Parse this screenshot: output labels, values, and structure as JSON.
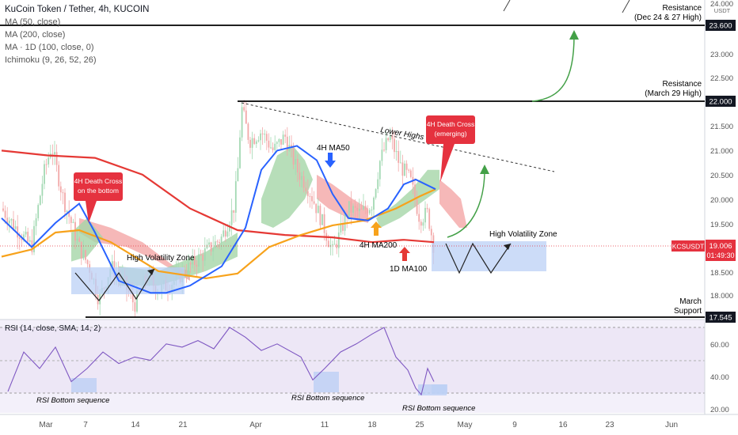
{
  "header": {
    "symbol_title": "KuCoin Token / Tether, 4h, KUCOIN",
    "indicators": [
      "MA (50, close)",
      "MA (200, close)",
      "MA · 1D (100, close, 0)",
      "Ichimoku (9, 26, 52, 26)"
    ]
  },
  "rsi_panel": {
    "label": "RSI (14, close, SMA, 14, 2)"
  },
  "price_axis": {
    "unit": "USDT",
    "ticks": [
      "24.000",
      "23.000",
      "22.500",
      "21.500",
      "21.000",
      "20.500",
      "20.000",
      "19.500",
      "18.500",
      "18.000"
    ],
    "highlighted": [
      {
        "value": "23.600",
        "style": "dark"
      },
      {
        "value": "22.000",
        "style": "dark"
      },
      {
        "value": "19.006",
        "style": "red",
        "extra": "01:49:30",
        "symbol": "KCSUSDT"
      },
      {
        "value": "17.545",
        "style": "dark"
      }
    ],
    "rsi_ticks": [
      "60.00",
      "40.00",
      "20.00"
    ]
  },
  "time_axis": {
    "ticks": [
      "Mar",
      "7",
      "14",
      "21",
      "Apr",
      "11",
      "18",
      "25",
      "May",
      "9",
      "16",
      "23",
      "Jun"
    ]
  },
  "annotations": {
    "resistance_top": [
      "Resistance",
      "(Dec 24 & 27 High)"
    ],
    "resistance_mid": [
      "Resistance",
      "(March 29 High)"
    ],
    "support": [
      "March",
      "Support"
    ],
    "lower_highs": "Lower Highs",
    "ma50": "4H MA50",
    "ma200": "4H MA200",
    "ma100_1d": "1D MA100",
    "high_vol_left": "High Volatility Zone",
    "high_vol_right": "High Volatility Zone",
    "death_cross_left": [
      "4H Death Cross",
      "on the bottom"
    ],
    "death_cross_right": [
      "4H Death Cross",
      "(emerging)"
    ],
    "rsi_bottom": [
      "RSI Bottom sequence",
      "RSI Bottom sequence",
      "RSI Bottom sequence"
    ]
  },
  "colors": {
    "ma50": "#2962ff",
    "ma200": "#f7a21b",
    "ma100_1d": "#e53935",
    "cloud_bull": "#a5d6a7",
    "cloud_bear": "#f4a6a6",
    "candle_up": "#a3d9b3",
    "candle_down": "#f2a8a8",
    "zone_fill": "#bbd0f5",
    "rsi_line": "#7e57c2",
    "rsi_band": "#ede7f6",
    "callout": "#e5323f",
    "projection": "#43a047"
  },
  "chart_data": {
    "type": "line",
    "title": "KuCoin Token / Tether, 4h, KUCOIN",
    "x": [
      "Mar",
      "7",
      "14",
      "21",
      "Apr",
      "11",
      "18",
      "25",
      "May",
      "9",
      "16",
      "23",
      "Jun"
    ],
    "ylim": [
      17.3,
      24.2
    ],
    "price_levels": {
      "resistance_dec": 23.6,
      "resistance_mar29": 22.0,
      "current": 19.006,
      "march_support": 17.545
    },
    "series": [
      {
        "name": "MA (50, close)",
        "points": [
          [
            2,
            19.6
          ],
          [
            40,
            19.0
          ],
          [
            70,
            19.5
          ],
          [
            100,
            19.9
          ],
          [
            120,
            19.3
          ],
          [
            150,
            18.3
          ],
          [
            190,
            18.05
          ],
          [
            210,
            18.05
          ],
          [
            240,
            18.2
          ],
          [
            280,
            18.6
          ],
          [
            310,
            19.4
          ],
          [
            330,
            20.6
          ],
          [
            350,
            21.0
          ],
          [
            375,
            21.1
          ],
          [
            400,
            20.8
          ],
          [
            420,
            20.1
          ],
          [
            440,
            19.6
          ],
          [
            465,
            19.55
          ],
          [
            490,
            19.8
          ],
          [
            510,
            20.3
          ],
          [
            525,
            20.4
          ],
          [
            550,
            20.2
          ]
        ]
      },
      {
        "name": "MA (200, close)",
        "points": [
          [
            2,
            18.8
          ],
          [
            40,
            18.95
          ],
          [
            70,
            19.3
          ],
          [
            100,
            19.35
          ],
          [
            140,
            19.1
          ],
          [
            200,
            18.5
          ],
          [
            260,
            18.35
          ],
          [
            300,
            18.45
          ],
          [
            340,
            19.0
          ],
          [
            380,
            19.25
          ],
          [
            420,
            19.45
          ],
          [
            460,
            19.55
          ],
          [
            500,
            19.8
          ],
          [
            530,
            20.05
          ],
          [
            550,
            20.2
          ]
        ]
      },
      {
        "name": "MA · 1D (100, close, 0)",
        "points": [
          [
            2,
            21.0
          ],
          [
            60,
            20.9
          ],
          [
            120,
            20.85
          ],
          [
            180,
            20.5
          ],
          [
            240,
            19.8
          ],
          [
            300,
            19.35
          ],
          [
            360,
            19.25
          ],
          [
            420,
            19.2
          ],
          [
            470,
            19.1
          ],
          [
            510,
            19.15
          ],
          [
            548,
            19.1
          ]
        ]
      },
      {
        "name": "RSI (14, close, SMA, 14, 2)",
        "ylim": [
          15,
          75
        ],
        "points": [
          [
            10,
            31
          ],
          [
            30,
            55
          ],
          [
            50,
            45
          ],
          [
            70,
            58
          ],
          [
            90,
            37
          ],
          [
            110,
            45
          ],
          [
            130,
            55
          ],
          [
            150,
            48
          ],
          [
            170,
            52
          ],
          [
            190,
            50
          ],
          [
            210,
            60
          ],
          [
            230,
            58
          ],
          [
            250,
            62
          ],
          [
            270,
            57
          ],
          [
            290,
            70
          ],
          [
            310,
            64
          ],
          [
            330,
            56
          ],
          [
            350,
            60
          ],
          [
            380,
            52
          ],
          [
            395,
            38
          ],
          [
            410,
            45
          ],
          [
            430,
            55
          ],
          [
            450,
            60
          ],
          [
            470,
            66
          ],
          [
            485,
            70
          ],
          [
            500,
            52
          ],
          [
            515,
            44
          ],
          [
            525,
            33
          ],
          [
            532,
            29
          ],
          [
            540,
            45
          ],
          [
            548,
            37
          ]
        ]
      }
    ]
  }
}
